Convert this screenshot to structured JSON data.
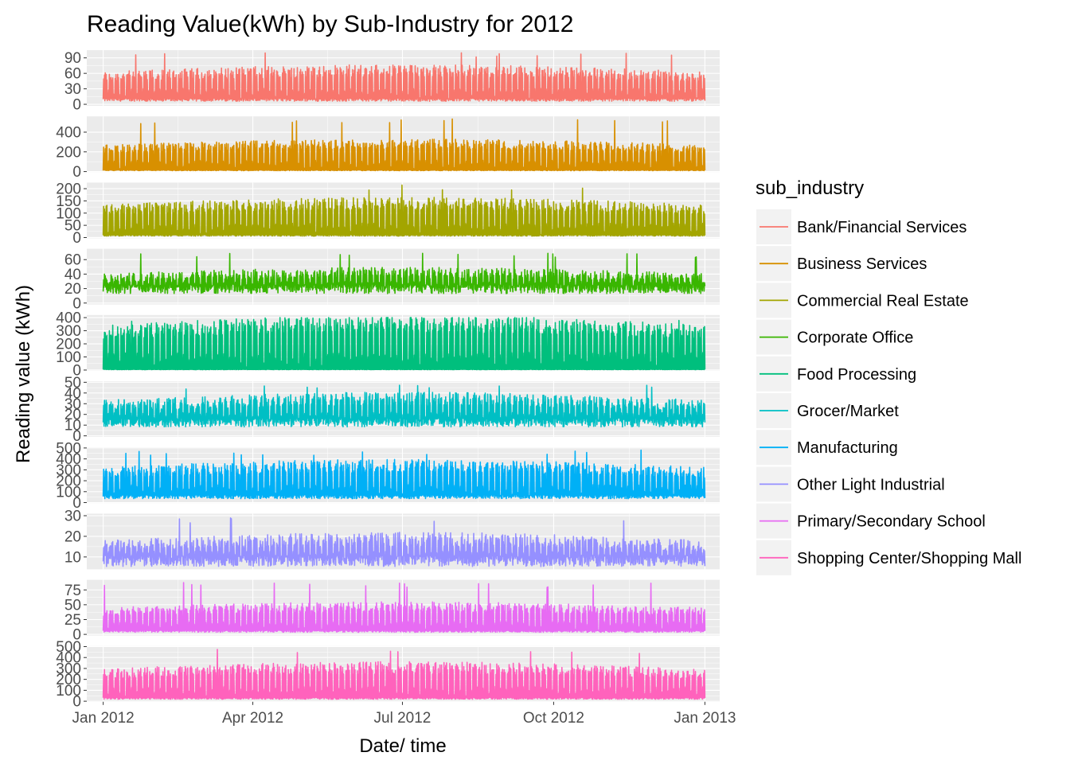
{
  "chart_data": {
    "type": "line",
    "title": "Reading Value(kWh) by Sub-Industry for 2012",
    "xlabel": "Date/ time",
    "ylabel": "Reading value (kWh)",
    "x_range": [
      "2011-12-22",
      "2013-01-10"
    ],
    "x_ticks": [
      {
        "label": "Jan 2012",
        "date": "2012-01-01"
      },
      {
        "label": "Apr 2012",
        "date": "2012-04-01"
      },
      {
        "label": "Jul 2012",
        "date": "2012-07-01"
      },
      {
        "label": "Oct 2012",
        "date": "2012-10-01"
      },
      {
        "label": "Jan 2013",
        "date": "2013-01-01"
      }
    ],
    "facets": "stacked, one panel per sub_industry, shared x axis",
    "grid": true,
    "legend": {
      "title": "sub_industry",
      "placement": "right",
      "entries": [
        "Bank/Financial Services",
        "Business Services",
        "Commercial Real Estate",
        "Corporate Office",
        "Food Processing",
        "Grocer/Market",
        "Manufacturing",
        "Other Light Industrial",
        "Primary/Secondary School",
        "Shopping Center/Shopping Mall"
      ]
    },
    "series": [
      {
        "name": "Bank/Financial Services",
        "color": "#F8766D",
        "ylim": [
          -3,
          105
        ],
        "y_ticks": [
          0,
          30,
          60,
          90
        ],
        "y_tick_labels": [
          "0",
          "30",
          "60",
          "90"
        ],
        "approx_base": 10,
        "approx_mean_peak": 70,
        "approx_max": 100
      },
      {
        "name": "Business Services",
        "color": "#D89000",
        "ylim": [
          -5,
          560
        ],
        "y_ticks": [
          0,
          200,
          400
        ],
        "y_tick_labels": [
          "0",
          "200",
          "400"
        ],
        "approx_base": 15,
        "approx_mean_peak": 300,
        "approx_max": 540
      },
      {
        "name": "Commercial Real Estate",
        "color": "#A3A500",
        "ylim": [
          -3,
          225
        ],
        "y_ticks": [
          0,
          50,
          100,
          150,
          200
        ],
        "y_tick_labels": [
          "0",
          "50",
          "100",
          "150",
          "200"
        ],
        "approx_base": 10,
        "approx_mean_peak": 150,
        "approx_max": 215
      },
      {
        "name": "Corporate Office",
        "color": "#39B600",
        "ylim": [
          -2,
          75
        ],
        "y_ticks": [
          0,
          20,
          40,
          60
        ],
        "y_tick_labels": [
          "0",
          "20",
          "40",
          "60"
        ],
        "approx_base": 22,
        "approx_mean_peak": 45,
        "approx_max": 70
      },
      {
        "name": "Food Processing",
        "color": "#00BF7D",
        "ylim": [
          -5,
          420
        ],
        "y_ticks": [
          0,
          100,
          200,
          300,
          400
        ],
        "y_tick_labels": [
          "0",
          "100",
          "200",
          "300",
          "400"
        ],
        "approx_base": 5,
        "approx_mean_peak": 380,
        "approx_max": 400
      },
      {
        "name": "Grocer/Market",
        "color": "#00BFC4",
        "ylim": [
          -1,
          51
        ],
        "y_ticks": [
          0,
          10,
          20,
          30,
          40,
          50
        ],
        "y_tick_labels": [
          "0",
          "10",
          "20",
          "30",
          "40",
          "50"
        ],
        "approx_base": 14,
        "approx_mean_peak": 37,
        "approx_max": 48
      },
      {
        "name": "Manufacturing",
        "color": "#00B0F6",
        "ylim": [
          -5,
          505
        ],
        "y_ticks": [
          0,
          100,
          200,
          300,
          400,
          500
        ],
        "y_tick_labels": [
          "0",
          "100",
          "200",
          "300",
          "400",
          "500"
        ],
        "approx_base": 60,
        "approx_mean_peak": 360,
        "approx_max": 480
      },
      {
        "name": "Other Light Industrial",
        "color": "#9590FF",
        "ylim": [
          4,
          31
        ],
        "y_ticks": [
          10,
          20,
          30
        ],
        "y_tick_labels": [
          "10",
          "20",
          "30"
        ],
        "approx_base": 9,
        "approx_mean_peak": 20,
        "approx_max": 29
      },
      {
        "name": "Primary/Secondary School",
        "color": "#E76BF3",
        "ylim": [
          -2,
          92
        ],
        "y_ticks": [
          0,
          25,
          50,
          75
        ],
        "y_tick_labels": [
          "0",
          "25",
          "50",
          "75"
        ],
        "approx_base": 6,
        "approx_mean_peak": 50,
        "approx_max": 88
      },
      {
        "name": "Shopping Center/Shopping Mall",
        "color": "#FF62BC",
        "ylim": [
          -5,
          505
        ],
        "y_ticks": [
          0,
          100,
          200,
          300,
          400,
          500
        ],
        "y_tick_labels": [
          "0",
          "100",
          "200",
          "300",
          "400",
          "500"
        ],
        "approx_base": 30,
        "approx_mean_peak": 330,
        "approx_max": 480
      }
    ]
  }
}
